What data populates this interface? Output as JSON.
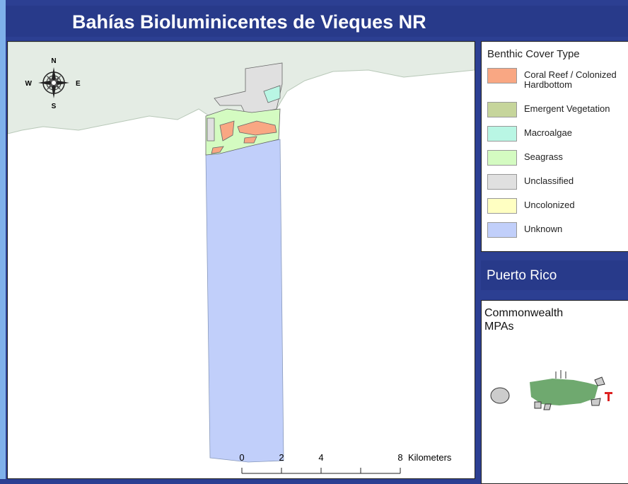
{
  "header": {
    "title": "Bahías Bioluminicentes de Vieques NR"
  },
  "compass": {
    "north": "N",
    "south": "S",
    "east": "E",
    "west": "W"
  },
  "scale_bar": {
    "ticks": [
      0,
      2,
      4,
      8
    ],
    "unit": "Kilometers"
  },
  "legend": {
    "title": "Benthic Cover Type",
    "items": [
      {
        "label": "Coral Reef / Colonized Hardbottom",
        "color": "#f9a783"
      },
      {
        "label": "Emergent Vegetation",
        "color": "#c6d59b"
      },
      {
        "label": "Macroalgae",
        "color": "#b9f6e4"
      },
      {
        "label": "Seagrass",
        "color": "#d4fbc1"
      },
      {
        "label": "Unclassified",
        "color": "#e0e0e0"
      },
      {
        "label": "Uncolonized",
        "color": "#ffffc2"
      },
      {
        "label": "Unknown",
        "color": "#c1cffa"
      }
    ]
  },
  "inset": {
    "header": "Puerto Rico",
    "title": "Commonwealth MPAs"
  }
}
